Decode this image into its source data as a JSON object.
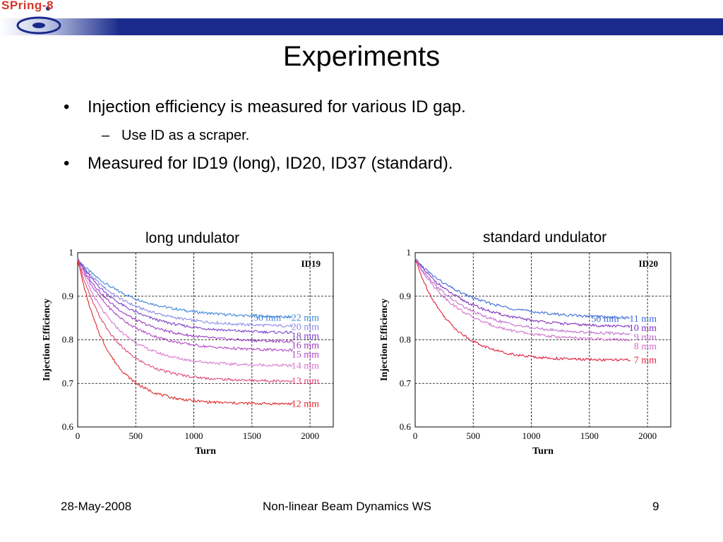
{
  "header": {
    "logo_text": "SPring-8",
    "title": "Experiments"
  },
  "bullets": [
    {
      "text": "Injection efficiency is measured for various ID gap.",
      "marker": "•"
    },
    {
      "text": "Use ID as a scraper.",
      "marker": "–"
    },
    {
      "text": "Measured for ID19 (long), ID20, ID37 (standard).",
      "marker": "•"
    }
  ],
  "chart_data": [
    {
      "type": "line",
      "title": "long undulator",
      "tag": "ID19",
      "xlabel": "Turn",
      "ylabel": "Injection Efficiency",
      "xlim": [
        0,
        2200
      ],
      "ylim": [
        0.6,
        1.0
      ],
      "xticks": [
        "0",
        "500",
        "1000",
        "1500",
        "2000"
      ],
      "yticks": [
        "0.6",
        "0.7",
        "0.8",
        "0.9",
        "1"
      ],
      "grid": true,
      "series": [
        {
          "name": "50 mm ~ 22 mm",
          "final": 0.85,
          "rate": 450,
          "color": "#3e86d8"
        },
        {
          "name": "20 mm",
          "final": 0.83,
          "rate": 420,
          "color": "#8b8ae6"
        },
        {
          "name": "18 mm",
          "final": 0.815,
          "rate": 400,
          "color": "#7a40c8"
        },
        {
          "name": "16 mm",
          "final": 0.795,
          "rate": 380,
          "color": "#9a3cc2"
        },
        {
          "name": "15 mm",
          "final": 0.775,
          "rate": 360,
          "color": "#b048c8"
        },
        {
          "name": "14 mm",
          "final": 0.74,
          "rate": 330,
          "color": "#d878d0"
        },
        {
          "name": "13 mm",
          "final": 0.705,
          "rate": 300,
          "color": "#e04878"
        },
        {
          "name": "12 mm",
          "final": 0.653,
          "rate": 260,
          "color": "#e02828"
        }
      ]
    },
    {
      "type": "line",
      "title": "standard undulator",
      "tag": "ID20",
      "xlabel": "Turn",
      "ylabel": "Injection Efficiency",
      "xlim": [
        0,
        2200
      ],
      "ylim": [
        0.6,
        1.0
      ],
      "xticks": [
        "0",
        "500",
        "1000",
        "1500",
        "2000"
      ],
      "yticks": [
        "0.6",
        "0.7",
        "0.8",
        "0.9",
        "1"
      ],
      "grid": true,
      "series": [
        {
          "name": "50 mm ~ 11 mm",
          "final": 0.848,
          "rate": 480,
          "color": "#3e6ad8"
        },
        {
          "name": "10 mm",
          "final": 0.828,
          "rate": 450,
          "color": "#8030c0"
        },
        {
          "name": "9 mm",
          "final": 0.812,
          "rate": 420,
          "color": "#c070d0"
        },
        {
          "name": "8 mm",
          "final": 0.798,
          "rate": 400,
          "color": "#d070c8"
        },
        {
          "name": "7 mm",
          "final": 0.753,
          "rate": 300,
          "color": "#e02040"
        }
      ]
    }
  ],
  "footer": {
    "date": "28-May-2008",
    "event": "Non-linear Beam Dynamics WS",
    "page": "9"
  },
  "colors": {
    "header_bar": "#1a2a8c",
    "logo_red": "#d4372b"
  }
}
